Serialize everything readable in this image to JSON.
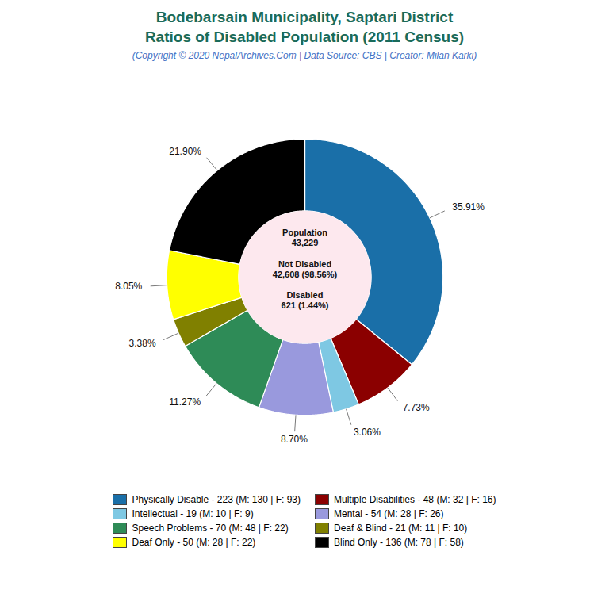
{
  "chart_data": {
    "type": "pie",
    "title": "Bodebarsain Municipality, Saptari District\nRatios of Disabled Population (2011 Census)",
    "subtitle": "(Copyright © 2020 NepalArchives.Com | Data Source: CBS | Creator: Milan Karki)",
    "annotations": [
      "Population\n43,229\n\nNot Disabled\n42,608 (98.56%)\n\nDisabled\n621 (1.44%)"
    ],
    "categories": [
      "Physically Disable - 223 (M: 130 | F: 93)",
      "Multiple Disabilities - 48 (M: 32 | F: 16)",
      "Intellectual - 19 (M: 10 | F: 9)",
      "Mental - 54 (M: 28 | F: 26)",
      "Speech Problems - 70 (M: 48 | F: 22)",
      "Deaf & Blind - 21 (M: 11 | F: 10)",
      "Deaf Only - 50 (M: 28 | F: 22)",
      "Blind Only - 136 (M: 78 | F: 58)"
    ],
    "values": [
      35.91,
      7.73,
      3.06,
      8.7,
      11.27,
      3.38,
      8.05,
      21.9
    ],
    "value_labels": [
      "35.91%",
      "7.73%",
      "3.06%",
      "8.70%",
      "11.27%",
      "3.38%",
      "8.05%",
      "21.90%"
    ],
    "colors": [
      "#1a6fa8",
      "#8b0000",
      "#7ec8e3",
      "#9999dd",
      "#2e8b57",
      "#808000",
      "#ffff00",
      "#000000"
    ],
    "data_labels": true,
    "legend": "bottom"
  }
}
